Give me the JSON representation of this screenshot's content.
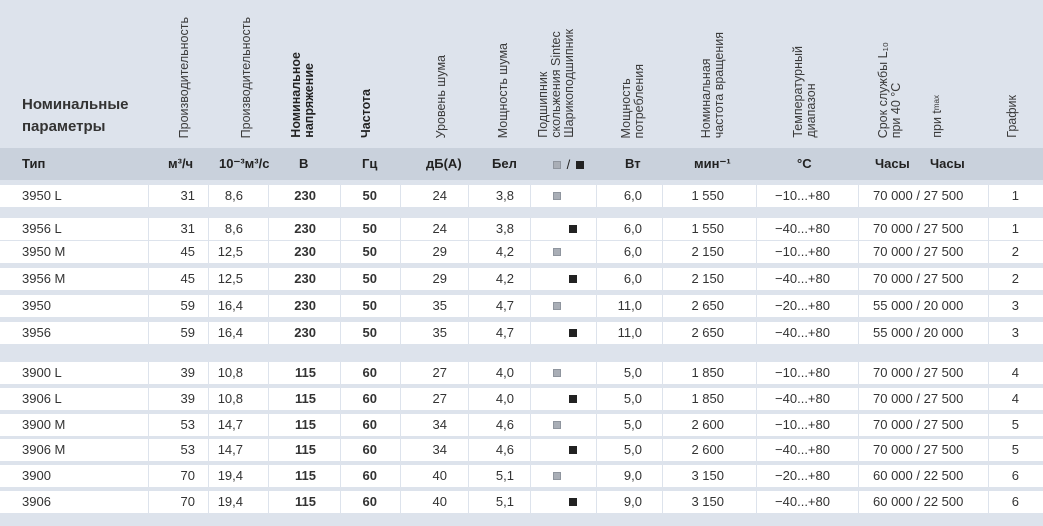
{
  "header": {
    "nominal_line1": "Номинальные",
    "nominal_line2": "параметры",
    "cols": {
      "flow1": "Производительность",
      "flow2": "Производительность",
      "voltage_1": "Номинальное",
      "voltage_2": "напряжение",
      "frequency": "Частота",
      "noise_level": "Уровень шума",
      "noise_power": "Мощность шума",
      "bearing_1": "Подшипник",
      "bearing_2": "скольжения Sintec",
      "bearing_3": "Шарикоподшипник",
      "power_1": "Мощность",
      "power_2": "потребления",
      "speed_1": "Номинальная",
      "speed_2": "частота вращения",
      "temp_1": "Температурный",
      "temp_2": "диапазон",
      "life_1": "Срок службы L₁₀",
      "life_2": "при 40 °C",
      "life_tmax": "при t",
      "life_tmax_sub": "max",
      "graph": "График"
    }
  },
  "units": {
    "type": "Тип",
    "flow1": "м³/ч",
    "flow2": "10⁻³м³/с",
    "voltage": "В",
    "frequency": "Гц",
    "noise_level": "дБ(А)",
    "noise_power": "Бел",
    "bearing_sep": "/",
    "power": "Вт",
    "speed": "мин⁻¹",
    "temp": "°C",
    "life1": "Часы",
    "life2": "Часы"
  },
  "rows": [
    {
      "type": "3950 L",
      "flow1": "31",
      "flow2": "8,6",
      "voltage": "230",
      "freq": "50",
      "db": "24",
      "bel": "3,8",
      "bearing": "sintec",
      "power": "6,0",
      "speed": "1 550",
      "temp": "−10...+80",
      "life": "70 000 / 27 500",
      "graph": "1"
    },
    {
      "type": "3956 L",
      "flow1": "31",
      "flow2": "8,6",
      "voltage": "230",
      "freq": "50",
      "db": "24",
      "bel": "3,8",
      "bearing": "ball",
      "power": "6,0",
      "speed": "1 550",
      "temp": "−40...+80",
      "life": "70 000 / 27 500",
      "graph": "1"
    },
    {
      "type": "3950 M",
      "flow1": "45",
      "flow2": "12,5",
      "voltage": "230",
      "freq": "50",
      "db": "29",
      "bel": "4,2",
      "bearing": "sintec",
      "power": "6,0",
      "speed": "2 150",
      "temp": "−10...+80",
      "life": "70 000 / 27 500",
      "graph": "2"
    },
    {
      "type": "3956 M",
      "flow1": "45",
      "flow2": "12,5",
      "voltage": "230",
      "freq": "50",
      "db": "29",
      "bel": "4,2",
      "bearing": "ball",
      "power": "6,0",
      "speed": "2 150",
      "temp": "−40...+80",
      "life": "70 000 / 27 500",
      "graph": "2"
    },
    {
      "type": "3950",
      "flow1": "59",
      "flow2": "16,4",
      "voltage": "230",
      "freq": "50",
      "db": "35",
      "bel": "4,7",
      "bearing": "sintec",
      "power": "11,0",
      "speed": "2 650",
      "temp": "−20...+80",
      "life": "55 000 / 20 000",
      "graph": "3"
    },
    {
      "type": "3956",
      "flow1": "59",
      "flow2": "16,4",
      "voltage": "230",
      "freq": "50",
      "db": "35",
      "bel": "4,7",
      "bearing": "ball",
      "power": "11,0",
      "speed": "2 650",
      "temp": "−40...+80",
      "life": "55 000 / 20 000",
      "graph": "3"
    },
    {
      "type": "3900 L",
      "flow1": "39",
      "flow2": "10,8",
      "voltage": "115",
      "freq": "60",
      "db": "27",
      "bel": "4,0",
      "bearing": "sintec",
      "power": "5,0",
      "speed": "1 850",
      "temp": "−10...+80",
      "life": "70 000 / 27 500",
      "graph": "4"
    },
    {
      "type": "3906 L",
      "flow1": "39",
      "flow2": "10,8",
      "voltage": "115",
      "freq": "60",
      "db": "27",
      "bel": "4,0",
      "bearing": "ball",
      "power": "5,0",
      "speed": "1 850",
      "temp": "−40...+80",
      "life": "70 000 / 27 500",
      "graph": "4"
    },
    {
      "type": "3900 M",
      "flow1": "53",
      "flow2": "14,7",
      "voltage": "115",
      "freq": "60",
      "db": "34",
      "bel": "4,6",
      "bearing": "sintec",
      "power": "5,0",
      "speed": "2 600",
      "temp": "−10...+80",
      "life": "70 000 / 27 500",
      "graph": "5"
    },
    {
      "type": "3906 M",
      "flow1": "53",
      "flow2": "14,7",
      "voltage": "115",
      "freq": "60",
      "db": "34",
      "bel": "4,6",
      "bearing": "ball",
      "power": "5,0",
      "speed": "2 600",
      "temp": "−40...+80",
      "life": "70 000 / 27 500",
      "graph": "5"
    },
    {
      "type": "3900",
      "flow1": "70",
      "flow2": "19,4",
      "voltage": "115",
      "freq": "60",
      "db": "40",
      "bel": "5,1",
      "bearing": "sintec",
      "power": "9,0",
      "speed": "3 150",
      "temp": "−20...+80",
      "life": "60 000 / 22 500",
      "graph": "6"
    },
    {
      "type": "3906",
      "flow1": "70",
      "flow2": "19,4",
      "voltage": "115",
      "freq": "60",
      "db": "40",
      "bel": "5,1",
      "bearing": "ball",
      "power": "9,0",
      "speed": "3 150",
      "temp": "−40...+80",
      "life": "60 000 / 22 500",
      "graph": "6"
    }
  ],
  "colors": {
    "header_bg": "#dde3ec",
    "unit_row_bg": "#c9d1dc",
    "row_bg": "#ffffff",
    "sintec_marker": "#a9aeb6",
    "ball_marker": "#222222"
  }
}
